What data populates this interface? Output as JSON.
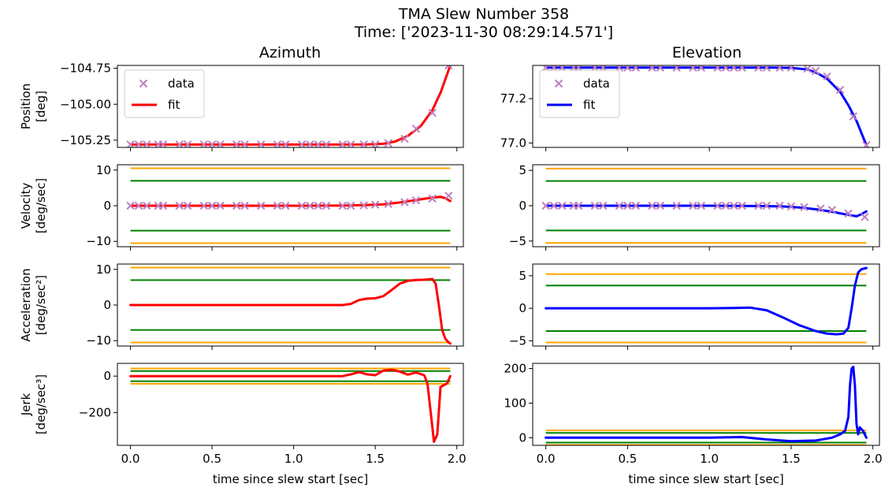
{
  "title_line1": "TMA Slew Number 358",
  "title_line2": "Time: ['2023-11-30 08:29:14.571']",
  "chart_data": {
    "type": "line",
    "columns": [
      "Azimuth",
      "Elevation"
    ],
    "xlabel": "time since slew start [sec]",
    "xlim": [
      -0.08,
      2.04
    ],
    "xticks": [
      "0.0",
      "0.5",
      "1.0",
      "1.5",
      "2.0"
    ],
    "legend": {
      "entries": [
        "data",
        "fit"
      ],
      "placement": "upper-left"
    },
    "colors": {
      "data_marker": "#bf7fbf",
      "fit_azimuth": "#ff0000",
      "fit_elevation": "#0000ff",
      "limit_outer": "#ffa500",
      "limit_inner": "#008000"
    },
    "rows": [
      {
        "id": "position",
        "ylabel": [
          "Position",
          "[deg]"
        ],
        "azimuth": {
          "ylim": [
            -105.3,
            -104.73
          ],
          "yticks": [
            "-105.25",
            "-105.00",
            "-104.75"
          ],
          "data_t": [
            0,
            0.05,
            0.1,
            0.17,
            0.2,
            0.3,
            0.35,
            0.45,
            0.5,
            0.55,
            0.65,
            0.7,
            0.8,
            0.9,
            0.95,
            1.05,
            1.1,
            1.15,
            1.2,
            1.3,
            1.35,
            1.43,
            1.5,
            1.58,
            1.68,
            1.75,
            1.85,
            1.95
          ],
          "data_y": [
            -105.28,
            -105.28,
            -105.28,
            -105.28,
            -105.28,
            -105.28,
            -105.28,
            -105.28,
            -105.28,
            -105.28,
            -105.28,
            -105.28,
            -105.28,
            -105.28,
            -105.28,
            -105.28,
            -105.28,
            -105.28,
            -105.28,
            -105.28,
            -105.28,
            -105.28,
            -105.28,
            -105.27,
            -105.24,
            -105.17,
            -105.06,
            -104.73
          ],
          "fit_t": [
            0,
            0.5,
            1.0,
            1.3,
            1.45,
            1.55,
            1.62,
            1.7,
            1.78,
            1.85,
            1.9,
            1.96
          ],
          "fit_y": [
            -105.28,
            -105.28,
            -105.28,
            -105.28,
            -105.279,
            -105.275,
            -105.26,
            -105.22,
            -105.15,
            -105.04,
            -104.92,
            -104.73
          ]
        },
        "elevation": {
          "ylim": [
            76.98,
            77.35
          ],
          "yticks": [
            "77.0",
            "77.2"
          ],
          "data_t": [
            0,
            0.05,
            0.1,
            0.17,
            0.2,
            0.3,
            0.35,
            0.45,
            0.5,
            0.55,
            0.65,
            0.7,
            0.8,
            0.9,
            0.95,
            1.05,
            1.1,
            1.15,
            1.2,
            1.3,
            1.35,
            1.43,
            1.5,
            1.6,
            1.65,
            1.72,
            1.8,
            1.88,
            1.96
          ],
          "data_y": [
            77.34,
            77.34,
            77.34,
            77.34,
            77.34,
            77.34,
            77.34,
            77.34,
            77.34,
            77.34,
            77.34,
            77.34,
            77.34,
            77.34,
            77.34,
            77.34,
            77.34,
            77.34,
            77.34,
            77.34,
            77.34,
            77.34,
            77.34,
            77.335,
            77.325,
            77.3,
            77.24,
            77.12,
            76.99
          ],
          "fit_t": [
            0,
            0.5,
            1.0,
            1.4,
            1.5,
            1.6,
            1.66,
            1.72,
            1.8,
            1.85,
            1.9,
            1.96
          ],
          "fit_y": [
            77.34,
            77.34,
            77.34,
            77.34,
            77.339,
            77.332,
            77.315,
            77.29,
            77.23,
            77.17,
            77.1,
            76.99
          ]
        }
      },
      {
        "id": "velocity",
        "ylabel": [
          "Velocity",
          "[deg/sec]"
        ],
        "azimuth": {
          "ylim": [
            -11.5,
            11.5
          ],
          "yticks": [
            "-10",
            "0",
            "10"
          ],
          "limits_outer": [
            10.5,
            -10.5
          ],
          "limits_inner": [
            7,
            -7
          ],
          "data_t": [
            0,
            0.05,
            0.1,
            0.17,
            0.2,
            0.3,
            0.35,
            0.45,
            0.5,
            0.55,
            0.65,
            0.7,
            0.8,
            0.9,
            0.95,
            1.05,
            1.1,
            1.15,
            1.2,
            1.3,
            1.35,
            1.43,
            1.5,
            1.58,
            1.68,
            1.75,
            1.85,
            1.95
          ],
          "data_y": [
            0,
            0,
            0,
            0,
            0,
            0,
            0,
            0,
            0,
            0,
            0,
            0,
            0,
            0,
            0,
            0,
            0,
            0,
            0,
            0,
            0,
            0.1,
            0.3,
            0.5,
            1.0,
            1.5,
            2.0,
            2.8
          ],
          "fit_t": [
            0,
            0.5,
            1.0,
            1.3,
            1.45,
            1.55,
            1.65,
            1.75,
            1.85,
            1.9,
            1.93,
            1.96
          ],
          "fit_y": [
            0,
            0,
            0,
            0.05,
            0.2,
            0.4,
            0.9,
            1.6,
            2.3,
            2.5,
            2.1,
            1.3
          ]
        },
        "elevation": {
          "ylim": [
            -5.8,
            5.8
          ],
          "yticks": [
            "-5",
            "0",
            "5"
          ],
          "limits_outer": [
            5.25,
            -5.25
          ],
          "limits_inner": [
            3.5,
            -3.5
          ],
          "data_t": [
            0,
            0.05,
            0.1,
            0.17,
            0.2,
            0.3,
            0.35,
            0.45,
            0.5,
            0.55,
            0.65,
            0.7,
            0.8,
            0.9,
            0.95,
            1.05,
            1.1,
            1.15,
            1.2,
            1.3,
            1.35,
            1.43,
            1.5,
            1.58,
            1.68,
            1.75,
            1.85,
            1.95
          ],
          "data_y": [
            0,
            0,
            0,
            0,
            0,
            0,
            0,
            0,
            0,
            0,
            0,
            0,
            0,
            0,
            0,
            0,
            0,
            0,
            0,
            0,
            0,
            0,
            -0.1,
            -0.2,
            -0.4,
            -0.6,
            -1.1,
            -1.6
          ],
          "fit_t": [
            0,
            0.5,
            1.0,
            1.3,
            1.45,
            1.55,
            1.65,
            1.75,
            1.85,
            1.9,
            1.93,
            1.96
          ],
          "fit_y": [
            0,
            0,
            0,
            -0.05,
            -0.1,
            -0.25,
            -0.5,
            -0.85,
            -1.3,
            -1.5,
            -1.2,
            -0.8
          ]
        }
      },
      {
        "id": "acceleration",
        "ylabel": [
          "Acceleration",
          "[deg/sec²]"
        ],
        "azimuth": {
          "ylim": [
            -11.5,
            11.5
          ],
          "yticks": [
            "-10",
            "0",
            "10"
          ],
          "limits_outer": [
            10.5,
            -10.5
          ],
          "limits_inner": [
            7,
            -7
          ],
          "fit_t": [
            0,
            0.5,
            1.0,
            1.3,
            1.35,
            1.4,
            1.45,
            1.5,
            1.55,
            1.6,
            1.65,
            1.7,
            1.75,
            1.8,
            1.85,
            1.87,
            1.89,
            1.91,
            1.93,
            1.95,
            1.96
          ],
          "fit_y": [
            0,
            0,
            0,
            0,
            0.3,
            1.4,
            1.8,
            1.9,
            2.5,
            4.2,
            6.0,
            6.8,
            7.0,
            7.1,
            7.3,
            6.0,
            0,
            -7,
            -9.5,
            -10.5,
            -10.8
          ]
        },
        "elevation": {
          "ylim": [
            -5.8,
            6.8
          ],
          "yticks": [
            "-5",
            "0",
            "5"
          ],
          "limits_outer": [
            5.25,
            -5.25
          ],
          "limits_inner": [
            3.5,
            -3.5
          ],
          "fit_t": [
            0,
            0.5,
            1.0,
            1.15,
            1.25,
            1.35,
            1.45,
            1.55,
            1.65,
            1.72,
            1.78,
            1.82,
            1.85,
            1.87,
            1.89,
            1.91,
            1.93,
            1.96
          ],
          "fit_y": [
            0,
            0,
            0,
            0.05,
            0.1,
            -0.3,
            -1.4,
            -2.6,
            -3.5,
            -3.9,
            -4.0,
            -3.9,
            -3.0,
            0,
            3.5,
            5.5,
            6.0,
            6.2
          ]
        }
      },
      {
        "id": "jerk",
        "ylabel": [
          "Jerk",
          "[deg/sec³]"
        ],
        "azimuth": {
          "ylim": [
            -380,
            70
          ],
          "yticks": [
            "-200",
            "0"
          ],
          "limits_outer": [
            42,
            -42
          ],
          "limits_inner": [
            28,
            -28
          ],
          "fit_t": [
            0,
            0.5,
            1.0,
            1.3,
            1.35,
            1.4,
            1.45,
            1.5,
            1.55,
            1.6,
            1.65,
            1.7,
            1.75,
            1.8,
            1.82,
            1.84,
            1.86,
            1.88,
            1.9,
            1.92,
            1.94,
            1.96
          ],
          "fit_y": [
            0,
            0,
            0,
            0,
            10,
            22,
            10,
            5,
            30,
            35,
            25,
            8,
            20,
            5,
            -40,
            -200,
            -360,
            -320,
            -60,
            -50,
            -40,
            0
          ]
        },
        "elevation": {
          "ylim": [
            -22,
            215
          ],
          "yticks": [
            "0",
            "100",
            "200"
          ],
          "limits_outer": [
            21,
            -21
          ],
          "limits_inner": [
            14,
            -14
          ],
          "fit_t": [
            0,
            0.5,
            1.0,
            1.2,
            1.35,
            1.5,
            1.65,
            1.75,
            1.8,
            1.83,
            1.85,
            1.86,
            1.87,
            1.88,
            1.89,
            1.9,
            1.91,
            1.92,
            1.94,
            1.96
          ],
          "fit_y": [
            0,
            0,
            0,
            2,
            -5,
            -10,
            -8,
            0,
            10,
            20,
            60,
            150,
            200,
            205,
            150,
            40,
            10,
            30,
            20,
            0
          ]
        }
      }
    ]
  }
}
